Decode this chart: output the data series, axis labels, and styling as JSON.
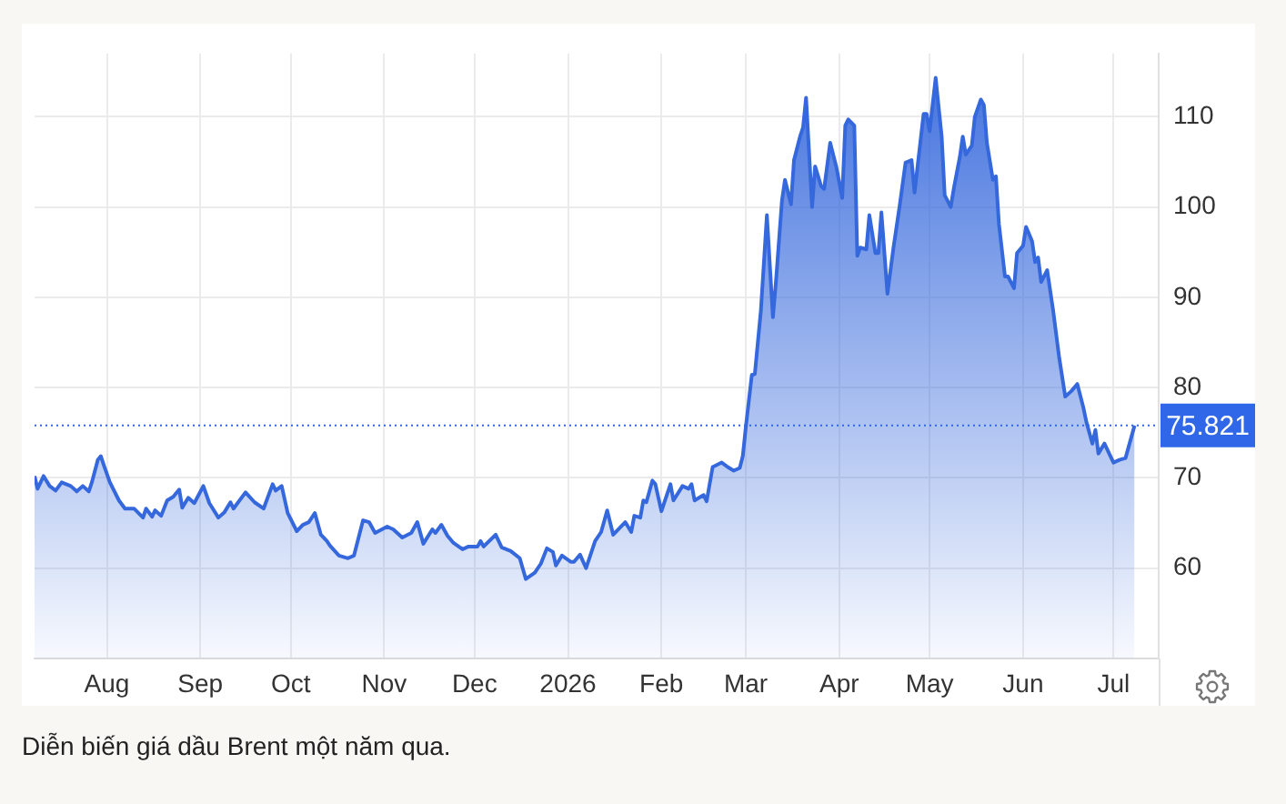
{
  "chart_data": {
    "type": "area",
    "color": "#3568dc",
    "x": [
      "2025-07-08",
      "2025-07-09",
      "2025-07-11",
      "2025-07-13",
      "2025-07-15",
      "2025-07-17",
      "2025-07-20",
      "2025-07-22",
      "2025-07-24",
      "2025-07-26",
      "2025-07-27",
      "2025-07-29",
      "2025-07-30",
      "2025-07-31",
      "2025-08-02",
      "2025-08-05",
      "2025-08-07",
      "2025-08-10",
      "2025-08-13",
      "2025-08-14",
      "2025-08-16",
      "2025-08-17",
      "2025-08-19",
      "2025-08-21",
      "2025-08-23",
      "2025-08-25",
      "2025-08-26",
      "2025-08-28",
      "2025-08-30",
      "2025-09-02",
      "2025-09-04",
      "2025-09-07",
      "2025-09-09",
      "2025-09-11",
      "2025-09-12",
      "2025-09-16",
      "2025-09-19",
      "2025-09-22",
      "2025-09-25",
      "2025-09-26",
      "2025-09-28",
      "2025-09-30",
      "2025-10-03",
      "2025-10-05",
      "2025-10-07",
      "2025-10-09",
      "2025-10-11",
      "2025-10-13",
      "2025-10-14",
      "2025-10-17",
      "2025-10-20",
      "2025-10-22",
      "2025-10-25",
      "2025-10-27",
      "2025-10-29",
      "2025-11-02",
      "2025-11-04",
      "2025-11-07",
      "2025-11-10",
      "2025-11-12",
      "2025-11-14",
      "2025-11-17",
      "2025-11-18",
      "2025-11-20",
      "2025-11-22",
      "2025-11-24",
      "2025-11-27",
      "2025-11-29",
      "2025-12-02",
      "2025-12-03",
      "2025-12-04",
      "2025-12-08",
      "2025-12-10",
      "2025-12-13",
      "2025-12-16",
      "2025-12-18",
      "2025-12-21",
      "2025-12-23",
      "2025-12-25",
      "2025-12-27",
      "2025-12-28",
      "2025-12-30",
      "2026-01-02",
      "2026-01-03",
      "2026-01-05",
      "2026-01-07",
      "2026-01-10",
      "2026-01-12",
      "2026-01-14",
      "2026-01-16",
      "2026-01-20",
      "2026-01-22",
      "2026-01-23",
      "2026-01-25",
      "2026-01-26",
      "2026-01-27",
      "2026-01-29",
      "2026-01-30",
      "2026-02-01",
      "2026-02-04",
      "2026-02-05",
      "2026-02-08",
      "2026-02-10",
      "2026-02-11",
      "2026-02-12",
      "2026-02-15",
      "2026-02-16",
      "2026-02-18",
      "2026-02-21",
      "2026-02-23",
      "2026-02-25",
      "2026-02-27",
      "2026-02-28",
      "2026-03-01",
      "2026-03-03",
      "2026-03-04",
      "2026-03-06",
      "2026-03-08",
      "2026-03-10",
      "2026-03-11",
      "2026-03-13",
      "2026-03-14",
      "2026-03-16",
      "2026-03-17",
      "2026-03-19",
      "2026-03-20",
      "2026-03-21",
      "2026-03-23",
      "2026-03-24",
      "2026-03-26",
      "2026-03-27",
      "2026-03-29",
      "2026-03-31",
      "2026-04-02",
      "2026-04-03",
      "2026-04-04",
      "2026-04-06",
      "2026-04-07",
      "2026-04-08",
      "2026-04-10",
      "2026-04-11",
      "2026-04-13",
      "2026-04-14",
      "2026-04-15",
      "2026-04-17",
      "2026-04-19",
      "2026-04-21",
      "2026-04-23",
      "2026-04-25",
      "2026-04-26",
      "2026-04-29",
      "2026-04-30",
      "2026-05-01",
      "2026-05-03",
      "2026-05-05",
      "2026-05-06",
      "2026-05-08",
      "2026-05-09",
      "2026-05-11",
      "2026-05-12",
      "2026-05-13",
      "2026-05-15",
      "2026-05-16",
      "2026-05-18",
      "2026-05-19",
      "2026-05-20",
      "2026-05-22",
      "2026-05-23",
      "2026-05-24",
      "2026-05-26",
      "2026-05-27",
      "2026-05-29",
      "2026-05-30",
      "2026-06-01",
      "2026-06-02",
      "2026-06-04",
      "2026-06-05",
      "2026-06-06",
      "2026-06-07",
      "2026-06-09",
      "2026-06-11",
      "2026-06-13",
      "2026-06-15",
      "2026-06-17",
      "2026-06-19",
      "2026-06-21",
      "2026-06-22",
      "2026-06-24",
      "2026-06-25",
      "2026-06-26",
      "2026-06-28",
      "2026-06-30",
      "2026-07-01",
      "2026-07-03",
      "2026-07-05",
      "2026-07-08"
    ],
    "values": [
      70.2,
      68.8,
      70.2,
      69.1,
      68.6,
      69.5,
      69.1,
      68.5,
      69.1,
      68.5,
      69.5,
      72.0,
      72.4,
      71.4,
      69.5,
      67.5,
      66.6,
      66.6,
      65.6,
      66.6,
      65.7,
      66.4,
      65.8,
      67.5,
      67.9,
      68.7,
      66.7,
      67.8,
      67.2,
      69.1,
      67.2,
      65.6,
      66.2,
      67.3,
      66.6,
      68.4,
      67.3,
      66.6,
      69.3,
      68.6,
      69.1,
      66.1,
      64.1,
      64.8,
      65.1,
      66.1,
      63.7,
      63.0,
      62.5,
      61.4,
      61.1,
      61.4,
      65.3,
      65.1,
      63.9,
      64.6,
      64.3,
      63.4,
      63.9,
      65.1,
      62.7,
      64.3,
      63.9,
      64.8,
      63.6,
      62.8,
      62.1,
      62.4,
      62.4,
      63.0,
      62.4,
      63.7,
      62.3,
      61.9,
      61.1,
      58.8,
      59.5,
      60.5,
      62.2,
      61.8,
      60.3,
      61.4,
      60.7,
      60.7,
      61.5,
      60.0,
      63.0,
      64.0,
      66.4,
      63.7,
      65.1,
      64.0,
      65.8,
      65.6,
      67.5,
      67.3,
      69.7,
      69.3,
      66.3,
      69.3,
      67.5,
      69.1,
      68.8,
      69.3,
      67.5,
      68.1,
      67.4,
      71.2,
      71.7,
      71.2,
      70.8,
      71.1,
      72.4,
      75.6,
      81.4,
      81.5,
      88.5,
      99.1,
      87.8,
      91.7,
      100.7,
      103.0,
      100.3,
      105.2,
      107.8,
      108.8,
      112.1,
      100.0,
      104.5,
      102.3,
      102.0,
      107.1,
      104.5,
      101.0,
      109.0,
      109.7,
      109.0,
      94.6,
      95.5,
      95.3,
      99.1,
      94.9,
      94.9,
      99.4,
      90.4,
      95.5,
      100.0,
      104.9,
      105.2,
      101.6,
      110.3,
      110.3,
      108.4,
      114.3,
      107.8,
      101.3,
      100.0,
      102.0,
      105.5,
      107.8,
      105.8,
      106.8,
      110.0,
      111.9,
      111.3,
      107.1,
      103.0,
      103.4,
      98.1,
      92.3,
      92.3,
      91.0,
      94.9,
      95.7,
      97.8,
      96.2,
      93.9,
      94.4,
      91.7,
      93.0,
      88.5,
      83.3,
      79.0,
      79.6,
      80.4,
      77.8,
      76.2,
      73.8,
      75.3,
      72.7,
      73.8,
      72.4,
      71.7,
      72.0,
      72.2,
      75.8
    ],
    "xlim": [
      "2025-07-08",
      "2026-07-16"
    ],
    "xticks": [
      {
        "value": "2025-08-01",
        "label": "Aug"
      },
      {
        "value": "2025-09-01",
        "label": "Sep"
      },
      {
        "value": "2025-10-01",
        "label": "Oct"
      },
      {
        "value": "2025-11-01",
        "label": "Nov"
      },
      {
        "value": "2025-12-01",
        "label": "Dec"
      },
      {
        "value": "2026-01-01",
        "label": "2026"
      },
      {
        "value": "2026-02-01",
        "label": "Feb"
      },
      {
        "value": "2026-03-01",
        "label": "Mar"
      },
      {
        "value": "2026-04-01",
        "label": "Apr"
      },
      {
        "value": "2026-05-01",
        "label": "May"
      },
      {
        "value": "2026-06-01",
        "label": "Jun"
      },
      {
        "value": "2026-07-01",
        "label": "Jul"
      }
    ],
    "ylim": [
      50,
      117
    ],
    "yticks": [
      60,
      70,
      80,
      90,
      100,
      110
    ],
    "grid": true,
    "ref_lines": [
      {
        "axis": "y",
        "value": 75.821,
        "label": "75.821",
        "color": "#2f67e8",
        "line_style": "dotted"
      }
    ],
    "annotations": [
      "Diễn biến giá dầu Brent một năm qua."
    ]
  }
}
